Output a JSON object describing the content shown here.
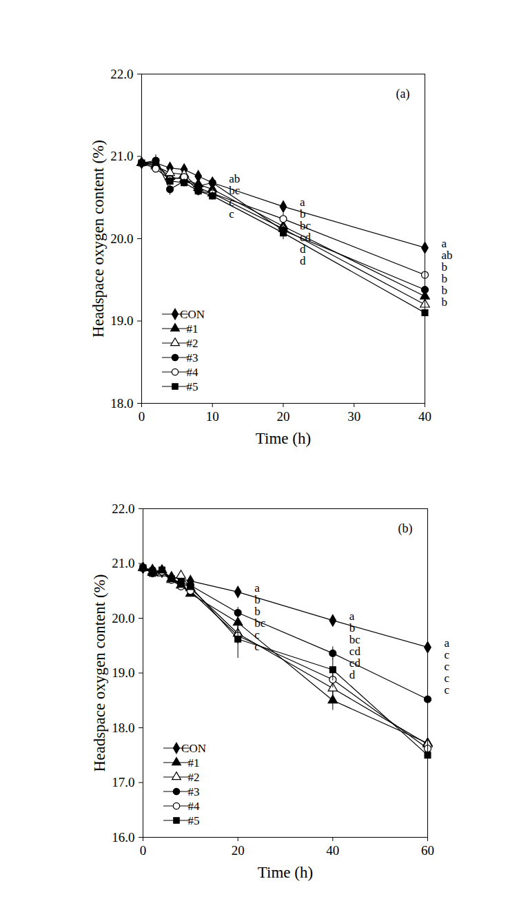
{
  "chart_data": [
    {
      "type": "line",
      "title": "(a)",
      "x_label": "Time (h)",
      "y_label": "Headspace oxygen content (%)",
      "x": [
        0,
        2,
        4,
        6,
        8,
        10,
        20,
        40
      ],
      "xlim": [
        0,
        40
      ],
      "xticks": [
        0,
        10,
        20,
        30,
        40
      ],
      "ylim": [
        18,
        22
      ],
      "yticks": [
        18,
        19,
        20,
        21,
        22
      ],
      "grid": false,
      "legend": "lower left",
      "series": [
        {
          "name": "CON",
          "color": "#000000",
          "marker": "diamond",
          "line_style": "solid",
          "values": [
            20.92,
            20.92,
            20.86,
            20.84,
            20.76,
            20.68,
            20.39,
            19.89
          ],
          "errors": [
            0.03,
            0.03,
            0.03,
            0.04,
            0.03,
            0.04,
            0.05,
            0.2
          ]
        },
        {
          "name": "#1",
          "color": "#000000",
          "marker": "triangle",
          "line_style": "solid",
          "values": [
            20.92,
            20.9,
            20.75,
            20.72,
            20.66,
            20.6,
            20.15,
            19.3
          ],
          "errors": [
            0.03,
            0.04,
            0.05,
            0.04,
            0.04,
            0.04,
            0.06,
            0.12
          ]
        },
        {
          "name": "#2",
          "color": "#000000",
          "marker": "triangle_open",
          "line_style": "solid",
          "values": [
            20.92,
            20.88,
            20.8,
            20.78,
            20.62,
            20.55,
            20.12,
            19.2
          ],
          "errors": [
            0.03,
            0.04,
            0.04,
            0.04,
            0.05,
            0.04,
            0.06,
            0.15
          ]
        },
        {
          "name": "#3",
          "color": "#000000",
          "marker": "circle",
          "line_style": "solid",
          "values": [
            20.92,
            20.95,
            20.6,
            20.7,
            20.64,
            20.68,
            20.1,
            19.38
          ],
          "errors": [
            0.03,
            0.07,
            0.07,
            0.05,
            0.05,
            0.04,
            0.06,
            0.12
          ]
        },
        {
          "name": "#4",
          "color": "#000000",
          "marker": "circle_open",
          "line_style": "solid",
          "values": [
            20.92,
            20.85,
            20.72,
            20.75,
            20.58,
            20.55,
            20.24,
            19.56
          ],
          "errors": [
            0.03,
            0.04,
            0.04,
            0.04,
            0.05,
            0.04,
            0.07,
            0.15
          ]
        },
        {
          "name": "#5",
          "color": "#000000",
          "marker": "square",
          "line_style": "solid",
          "values": [
            20.92,
            20.93,
            20.7,
            20.68,
            20.58,
            20.52,
            20.07,
            19.1
          ],
          "errors": [
            0.03,
            0.04,
            0.05,
            0.05,
            0.06,
            0.05,
            0.08,
            0.32
          ]
        }
      ],
      "annotations": [
        {
          "x": 10,
          "labels": [
            "ab",
            "bc",
            "c",
            "c"
          ]
        },
        {
          "x": 20,
          "labels": [
            "a",
            "b",
            "bc",
            "cd",
            "d",
            "d"
          ]
        },
        {
          "x": 40,
          "labels": [
            "a",
            "ab",
            "b",
            "b",
            "b",
            "b"
          ]
        }
      ]
    },
    {
      "type": "line",
      "title": "(b)",
      "x_label": "Time (h)",
      "y_label": "Headspace oxygen content (%)",
      "x": [
        0,
        2,
        4,
        6,
        8,
        10,
        20,
        40,
        60
      ],
      "xlim": [
        0,
        60
      ],
      "xticks": [
        0,
        20,
        40,
        60
      ],
      "ylim": [
        16,
        22
      ],
      "yticks": [
        16,
        17,
        18,
        19,
        20,
        21,
        22
      ],
      "grid": false,
      "legend": "lower left",
      "series": [
        {
          "name": "CON",
          "color": "#000000",
          "marker": "diamond",
          "line_style": "solid",
          "values": [
            20.92,
            20.88,
            20.85,
            20.75,
            20.72,
            20.68,
            20.48,
            19.96,
            19.47
          ],
          "errors": [
            0.03,
            0.03,
            0.03,
            0.04,
            0.03,
            0.04,
            0.05,
            0.1,
            0.05
          ]
        },
        {
          "name": "#1",
          "color": "#000000",
          "marker": "triangle",
          "line_style": "solid",
          "values": [
            20.92,
            20.85,
            20.88,
            20.72,
            20.6,
            20.45,
            19.92,
            18.5,
            17.72
          ],
          "errors": [
            0.03,
            0.04,
            0.04,
            0.04,
            0.05,
            0.06,
            0.1,
            0.18,
            0.3
          ]
        },
        {
          "name": "#2",
          "color": "#000000",
          "marker": "triangle_open",
          "line_style": "solid",
          "values": [
            20.92,
            20.83,
            20.82,
            20.7,
            20.78,
            20.55,
            19.72,
            18.72,
            17.7
          ],
          "errors": [
            0.03,
            0.04,
            0.04,
            0.04,
            0.04,
            0.06,
            0.12,
            0.15,
            0.3
          ]
        },
        {
          "name": "#3",
          "color": "#000000",
          "marker": "circle",
          "line_style": "solid",
          "values": [
            20.92,
            20.88,
            20.85,
            20.72,
            20.65,
            20.6,
            20.1,
            19.36,
            18.52
          ],
          "errors": [
            0.03,
            0.04,
            0.04,
            0.04,
            0.05,
            0.05,
            0.1,
            0.12,
            0.05
          ]
        },
        {
          "name": "#4",
          "color": "#000000",
          "marker": "circle_open",
          "line_style": "solid",
          "values": [
            20.92,
            20.82,
            20.85,
            20.7,
            20.58,
            20.5,
            19.68,
            18.88,
            17.62
          ],
          "errors": [
            0.03,
            0.04,
            0.04,
            0.04,
            0.05,
            0.06,
            0.15,
            0.15,
            0.3
          ]
        },
        {
          "name": "#5",
          "color": "#000000",
          "marker": "square",
          "line_style": "solid",
          "values": [
            20.92,
            20.82,
            20.88,
            20.72,
            20.62,
            20.58,
            19.62,
            19.06,
            17.5
          ],
          "errors": [
            0.03,
            0.04,
            0.04,
            0.04,
            0.05,
            0.05,
            0.35,
            0.2,
            0.35
          ]
        }
      ],
      "annotations": [
        {
          "x": 20,
          "labels": [
            "a",
            "b",
            "b",
            "bc",
            "c",
            "c"
          ]
        },
        {
          "x": 40,
          "labels": [
            "a",
            "b",
            "bc",
            "cd",
            "cd",
            "d"
          ]
        },
        {
          "x": 60,
          "labels": [
            "a",
            "c",
            "c",
            "c",
            "c"
          ]
        }
      ]
    }
  ]
}
